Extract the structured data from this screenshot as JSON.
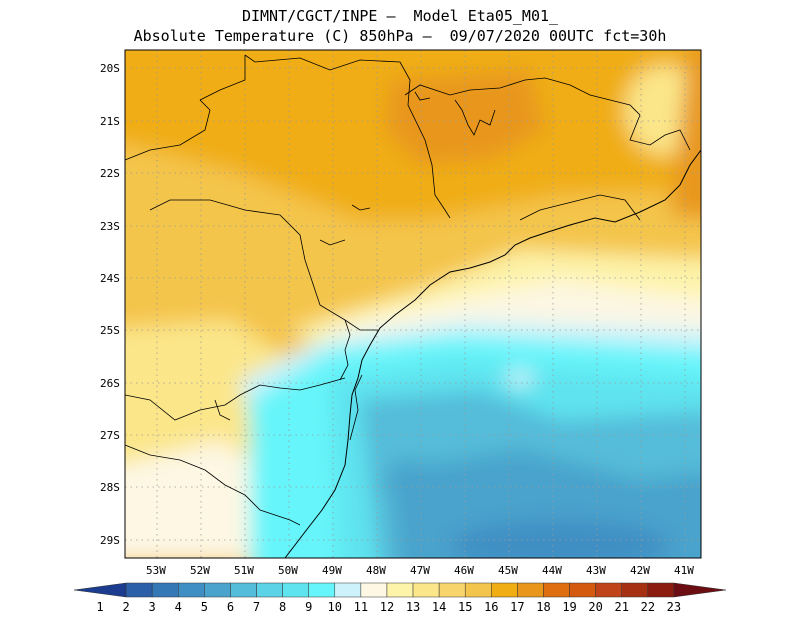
{
  "title_line1": "DIMNT/CGCT/INPE –  Model Eta05_M01_",
  "title_line2": "Absolute Temperature (C) 850hPa –  09/07/2020 00UTC fct=30h",
  "lat_labels": [
    "20S",
    "21S",
    "22S",
    "23S",
    "24S",
    "25S",
    "26S",
    "27S",
    "28S",
    "29S"
  ],
  "lon_labels": [
    "53W",
    "52W",
    "51W",
    "50W",
    "49W",
    "48W",
    "47W",
    "46W",
    "45W",
    "44W",
    "43W",
    "42W",
    "41W"
  ],
  "colorbar": {
    "labels": [
      "1",
      "2",
      "3",
      "4",
      "5",
      "6",
      "7",
      "8",
      "9",
      "10",
      "11",
      "12",
      "13",
      "14",
      "15",
      "16",
      "17",
      "18",
      "19",
      "20",
      "21",
      "22",
      "23"
    ],
    "colors": [
      "#1c3d8f",
      "#2b5fa8",
      "#3578b6",
      "#3f8fc4",
      "#4aa3cc",
      "#55bcd9",
      "#5cd3e6",
      "#5fe4ef",
      "#66f5fa",
      "#cdf2fb",
      "#fdf7e3",
      "#fdf3a9",
      "#fbe68a",
      "#f8d56c",
      "#f4c54c",
      "#f0ad14",
      "#e8971c",
      "#df6e10",
      "#d35a0e",
      "#c0441a",
      "#a53012",
      "#8c1c10",
      "#6b0d13"
    ]
  }
}
